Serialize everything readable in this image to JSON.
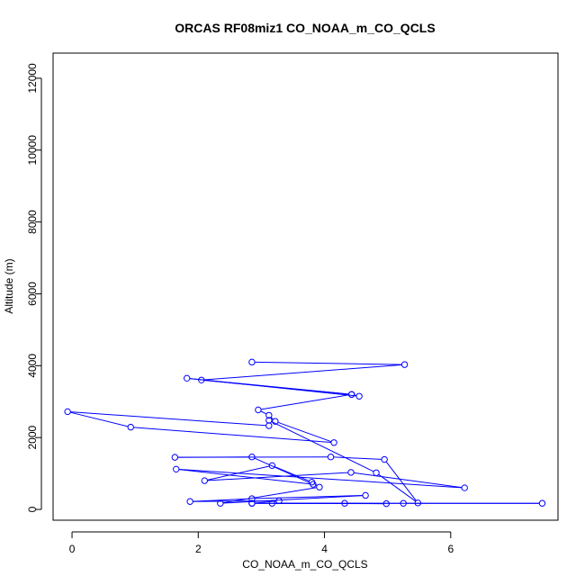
{
  "chart_data": {
    "type": "line",
    "title": "ORCAS RF08miz1 CO_NOAA_m_CO_QCLS",
    "xlabel": "CO_NOAA_m_CO_QCLS",
    "ylabel": "Altitude (m)",
    "xlim": [
      -0.3,
      7.7
    ],
    "ylim": [
      -300,
      12700
    ],
    "xticks": [
      0,
      2,
      4,
      6
    ],
    "yticks": [
      0,
      2000,
      4000,
      6000,
      8000,
      10000,
      12000
    ],
    "grid": false,
    "legend": "none",
    "colors": {
      "series": "#0000ff",
      "axes": "#000000",
      "background": "#ffffff"
    },
    "series": [
      {
        "marker": "open-circle",
        "x": [
          2.85,
          5.27,
          2.05,
          4.43,
          1.82,
          4.55,
          4.43,
          2.95,
          3.12,
          3.22,
          4.15,
          0.93,
          -0.07,
          3.12,
          3.12,
          4.82,
          5.48,
          4.95,
          4.1,
          1.63,
          2.85,
          3.82,
          1.65,
          6.22,
          4.42,
          2.1,
          3.17,
          3.8,
          3.92,
          2.35,
          4.65,
          2.85,
          1.87,
          3.28,
          2.85,
          4.98,
          4.32,
          3.17,
          5.25,
          7.45,
          2.85
        ]
      },
      {
        "y": [
          4100,
          4030,
          3600,
          3200,
          3650,
          3150,
          3200,
          2770,
          2620,
          2450,
          1860,
          2290,
          2720,
          2330,
          2480,
          1020,
          180,
          1390,
          1460,
          1450,
          1460,
          700,
          1120,
          600,
          1030,
          800,
          1220,
          760,
          620,
          170,
          390,
          300,
          220,
          240,
          170,
          160,
          170,
          170,
          170,
          170,
          170
        ]
      }
    ]
  }
}
